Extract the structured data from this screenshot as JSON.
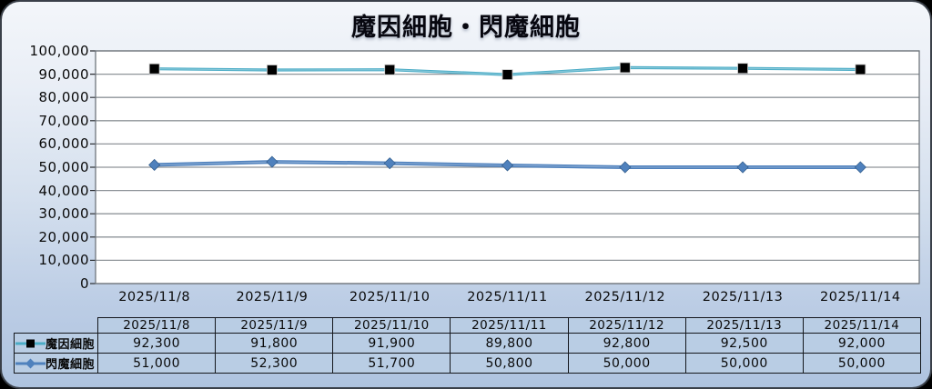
{
  "chart_data": {
    "type": "line",
    "title": "魔因細胞・閃魔細胞",
    "categories": [
      "2025/11/8",
      "2025/11/9",
      "2025/11/10",
      "2025/11/11",
      "2025/11/12",
      "2025/11/13",
      "2025/11/14"
    ],
    "series": [
      {
        "name": "魔因細胞",
        "values": [
          92300,
          91800,
          91900,
          89800,
          92800,
          92500,
          92000
        ],
        "color": "#4BACC6",
        "line_width": 3.2,
        "marker": "square",
        "marker_color": "#000000"
      },
      {
        "name": "閃魔細胞",
        "values": [
          51000,
          52300,
          51700,
          50800,
          50000,
          50000,
          50000
        ],
        "color": "#4F81BD",
        "line_width": 4,
        "marker": "diamond",
        "marker_color": "#4F81BD"
      }
    ],
    "ylim": [
      0,
      100000
    ],
    "ytick_step": 10000,
    "ytick_labels_top_to_bottom": [
      "100,000",
      "90,000",
      "80,000",
      "70,000",
      "60,000",
      "50,000",
      "40,000",
      "30,000",
      "20,000",
      "10,000",
      "0"
    ],
    "grid": true,
    "legend_position": "table-left-column"
  },
  "table": {
    "header_dates": [
      "2025/11/8",
      "2025/11/9",
      "2025/11/10",
      "2025/11/11",
      "2025/11/12",
      "2025/11/13",
      "2025/11/14"
    ],
    "rows": [
      {
        "label": "魔因細胞",
        "values": [
          "92,300",
          "91,800",
          "91,900",
          "89,800",
          "92,800",
          "92,500",
          "92,000"
        ]
      },
      {
        "label": "閃魔細胞",
        "values": [
          "51,000",
          "52,300",
          "51,700",
          "50,800",
          "50,000",
          "50,000",
          "50,000"
        ]
      }
    ]
  },
  "colors": {
    "series1_line": "#4BACC6",
    "series1_marker": "#000000",
    "series2_line": "#4F81BD",
    "series2_marker": "#4F81BD",
    "plot_background": "#FFFFFF",
    "gridline": "#8f9499",
    "table_cell_fill": "#B9CDE4",
    "table_border": "#14171C",
    "widget_bg_top": "#F3F6FA",
    "widget_bg_bottom": "#AEC3DF",
    "title_text": "#07070F"
  }
}
